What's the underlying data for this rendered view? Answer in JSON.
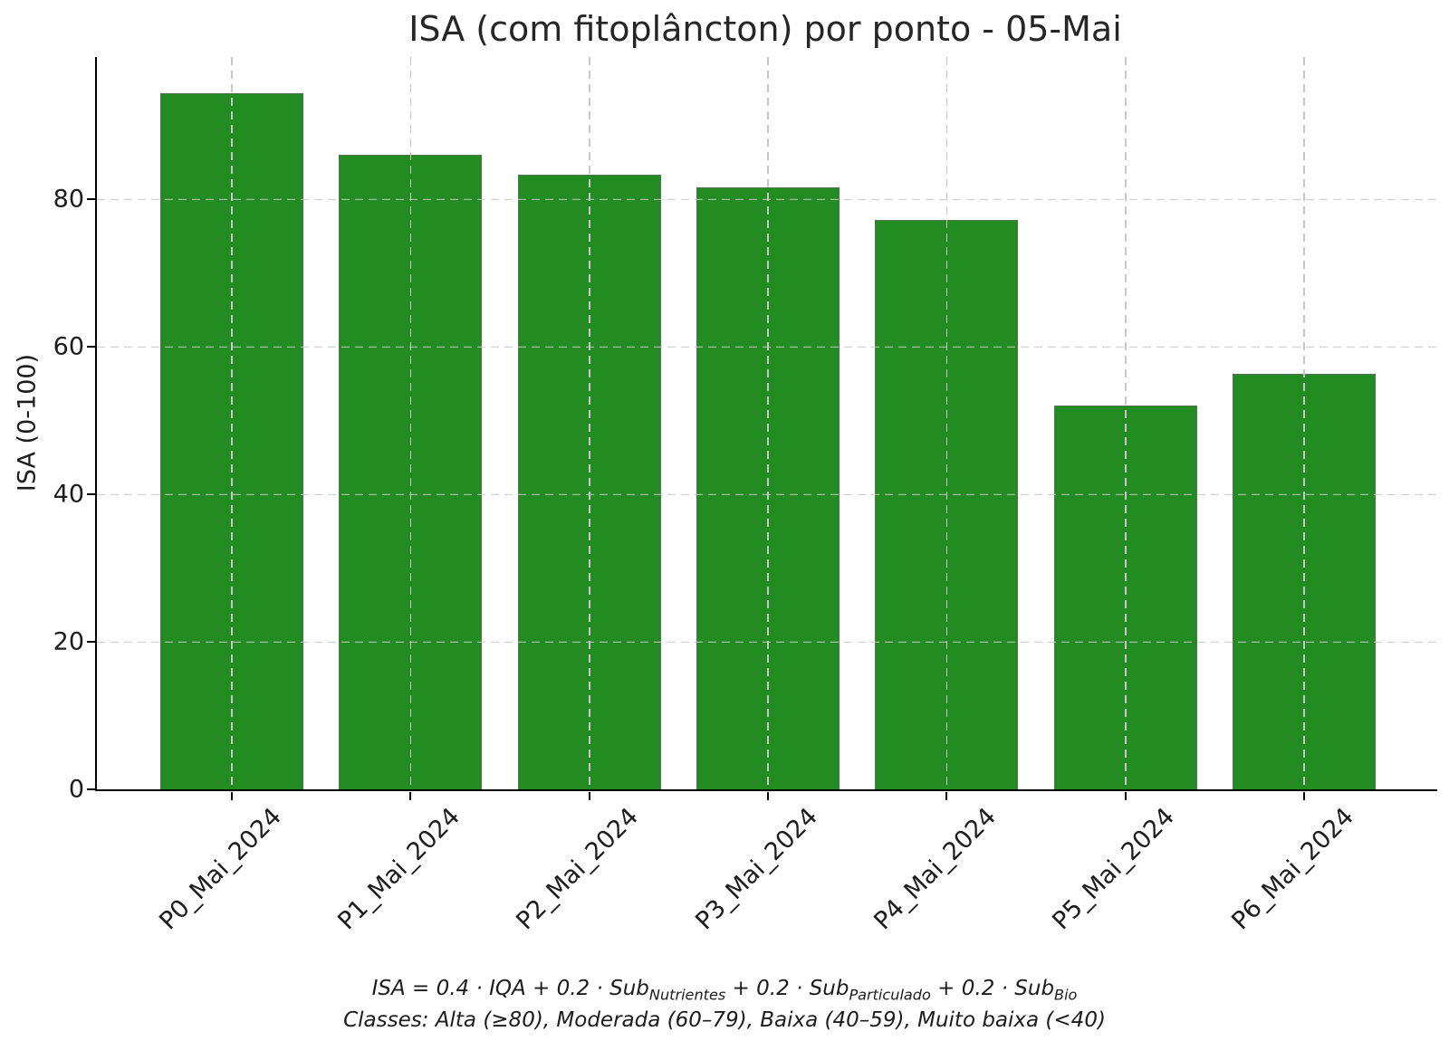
{
  "chart_data": {
    "type": "bar",
    "title": "ISA (com fitoplâncton) por ponto - 05-Mai",
    "categories": [
      "P0_Mai_2024",
      "P1_Mai_2024",
      "P2_Mai_2024",
      "P3_Mai_2024",
      "P4_Mai_2024",
      "P5_Mai_2024",
      "P6_Mai_2024"
    ],
    "values": [
      94.4,
      86.1,
      83.3,
      81.6,
      77.2,
      52.1,
      56.4
    ],
    "xlabel": "",
    "ylabel": "ISA (0-100)",
    "ylim": [
      0,
      99.3
    ],
    "yticks": [
      0,
      20,
      40,
      60,
      80
    ],
    "ytick_labels": [
      "0",
      "20",
      "40",
      "60",
      "80"
    ],
    "grid": "dashed light-gray horizontal and vertical gridlines drawn over bars",
    "legend": "none",
    "bar_color": "#228B22",
    "bar_edge_color": "#696969",
    "xtick_label_rotation_deg": 45
  },
  "footer": {
    "formula": {
      "seg1": "ISA = 0.4 · IQA + 0.2 · Sub",
      "sub1": "Nutrientes",
      "seg2": " + 0.2 · Sub",
      "sub2": "Particulado",
      "seg3": " + 0.2 · Sub",
      "sub3": "Bio"
    },
    "classes_line": "Classes: Alta (≥80), Moderada (60–79), Baixa (40–59), Muito baixa (<40)"
  }
}
